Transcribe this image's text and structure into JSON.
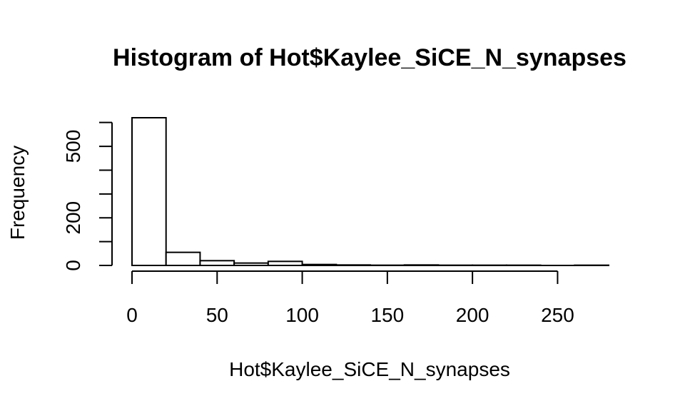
{
  "chart_data": {
    "type": "bar",
    "title": "Histogram of Hot$Kaylee_SiCE_N_synapses",
    "xlabel": "Hot$Kaylee_SiCE_N_synapses",
    "ylabel": "Frequency",
    "bins": [
      {
        "from": 0,
        "to": 20,
        "count": 620
      },
      {
        "from": 20,
        "to": 40,
        "count": 55
      },
      {
        "from": 40,
        "to": 60,
        "count": 20
      },
      {
        "from": 60,
        "to": 80,
        "count": 10
      },
      {
        "from": 80,
        "to": 100,
        "count": 17
      },
      {
        "from": 100,
        "to": 120,
        "count": 4
      },
      {
        "from": 120,
        "to": 140,
        "count": 2
      },
      {
        "from": 140,
        "to": 160,
        "count": 1
      },
      {
        "from": 160,
        "to": 180,
        "count": 2
      },
      {
        "from": 180,
        "to": 200,
        "count": 1
      },
      {
        "from": 200,
        "to": 220,
        "count": 1
      },
      {
        "from": 220,
        "to": 240,
        "count": 1
      },
      {
        "from": 240,
        "to": 260,
        "count": 0
      },
      {
        "from": 260,
        "to": 280,
        "count": 1
      }
    ],
    "xlim": [
      0,
      280
    ],
    "ylim": [
      0,
      620
    ],
    "x_ticks": [
      0,
      50,
      100,
      150,
      200,
      250
    ],
    "x_tick_labels": [
      "0",
      "50",
      "100",
      "150",
      "200",
      "250"
    ],
    "y_ticks": [
      0,
      100,
      200,
      300,
      400,
      500,
      600
    ],
    "y_tick_labels": [
      "0",
      "",
      "200",
      "",
      "",
      "500",
      ""
    ],
    "grid": false
  }
}
